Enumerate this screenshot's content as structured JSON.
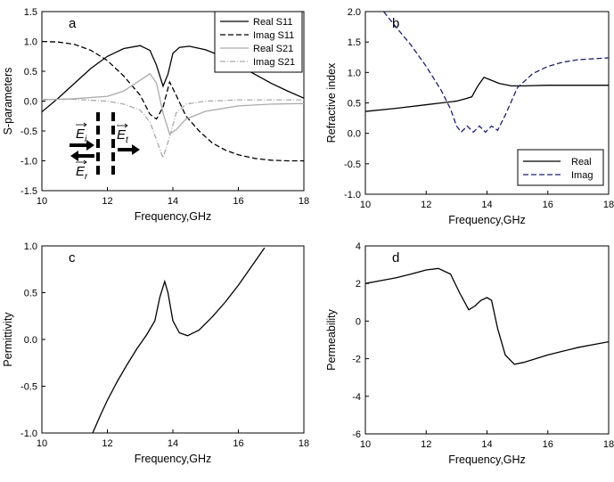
{
  "chart_data": [
    {
      "id": "a",
      "panel_label": "a",
      "type": "line",
      "xlabel": "Frequency,GHz",
      "ylabel": "S-parameters",
      "xlim": [
        10,
        18
      ],
      "ylim": [
        -1.5,
        1.5
      ],
      "xticks": [
        "10",
        "12",
        "14",
        "16",
        "18"
      ],
      "yticks": [
        "-1.5",
        "-1.0",
        "-0.5",
        "0.0",
        "0.5",
        "1.0",
        "1.5"
      ],
      "legend_position": "top-right",
      "series": [
        {
          "name": "Real S11",
          "style": "solid",
          "color": "#000000",
          "x": [
            10,
            10.5,
            11,
            11.5,
            12,
            12.5,
            13,
            13.3,
            13.5,
            13.7,
            13.85,
            14,
            14.2,
            14.5,
            15,
            15.5,
            16,
            16.5,
            17,
            17.5,
            18
          ],
          "y": [
            -0.18,
            0.05,
            0.3,
            0.55,
            0.75,
            0.88,
            0.93,
            0.85,
            0.6,
            0.25,
            0.45,
            0.8,
            0.9,
            0.92,
            0.86,
            0.75,
            0.6,
            0.45,
            0.3,
            0.17,
            0.05
          ]
        },
        {
          "name": "Imag S11",
          "style": "dashed",
          "color": "#000000",
          "x": [
            10,
            10.5,
            11,
            11.5,
            12,
            12.5,
            13,
            13.3,
            13.5,
            13.7,
            13.9,
            14.1,
            14.4,
            14.8,
            15.2,
            15.6,
            16,
            16.5,
            17,
            17.5,
            18
          ],
          "y": [
            1.0,
            0.99,
            0.95,
            0.85,
            0.68,
            0.42,
            0.1,
            -0.22,
            -0.3,
            -0.1,
            0.32,
            0.1,
            -0.25,
            -0.5,
            -0.7,
            -0.82,
            -0.9,
            -0.96,
            -0.99,
            -1.0,
            -1.0
          ]
        },
        {
          "name": "Real S21",
          "style": "solid",
          "color": "#aaaaaa",
          "x": [
            10,
            11,
            12,
            12.5,
            13,
            13.3,
            13.5,
            13.7,
            13.9,
            14.1,
            14.4,
            15,
            16,
            17,
            18
          ],
          "y": [
            0.02,
            0.04,
            0.08,
            0.17,
            0.35,
            0.46,
            0.3,
            -0.2,
            -0.55,
            -0.48,
            -0.3,
            -0.17,
            -0.08,
            -0.05,
            -0.04
          ]
        },
        {
          "name": "Imag S21",
          "style": "dashdot",
          "color": "#aaaaaa",
          "x": [
            10,
            11,
            12,
            12.5,
            13,
            13.3,
            13.5,
            13.7,
            13.9,
            14.1,
            14.4,
            15,
            16,
            17,
            18
          ],
          "y": [
            0.03,
            0.03,
            0.0,
            -0.05,
            -0.15,
            -0.35,
            -0.65,
            -0.95,
            -0.6,
            -0.2,
            -0.05,
            0.0,
            0.02,
            0.02,
            0.02
          ]
        }
      ],
      "inset_labels": [
        "E",
        "i",
        "E",
        "t",
        "E",
        "r"
      ]
    },
    {
      "id": "b",
      "panel_label": "b",
      "type": "line",
      "xlabel": "Frequency,GHz",
      "ylabel": "Refractive index",
      "xlim": [
        10,
        18
      ],
      "ylim": [
        -1.0,
        2.0
      ],
      "xticks": [
        "10",
        "12",
        "14",
        "16",
        "18"
      ],
      "yticks": [
        "-1.0",
        "-0.5",
        "0.0",
        "0.5",
        "1.0",
        "1.5",
        "2.0"
      ],
      "legend_position": "bottom-right",
      "series": [
        {
          "name": "Real",
          "style": "solid",
          "color": "#000000",
          "x": [
            10,
            11,
            12,
            12.5,
            13,
            13.3,
            13.5,
            13.7,
            13.9,
            14.1,
            14.4,
            14.8,
            15.2,
            16,
            17,
            18
          ],
          "y": [
            0.36,
            0.41,
            0.47,
            0.5,
            0.53,
            0.57,
            0.6,
            0.78,
            0.92,
            0.88,
            0.82,
            0.78,
            0.78,
            0.79,
            0.79,
            0.79
          ]
        },
        {
          "name": "Imag",
          "style": "dashed",
          "color": "#1f1f6f",
          "x": [
            10.6,
            11,
            11.5,
            12,
            12.5,
            12.8,
            13.0,
            13.15,
            13.35,
            13.55,
            13.75,
            13.95,
            14.15,
            14.35,
            14.6,
            15,
            15.5,
            16,
            16.5,
            17,
            18
          ],
          "y": [
            2.0,
            1.75,
            1.45,
            1.1,
            0.7,
            0.4,
            0.12,
            0.02,
            0.12,
            0.02,
            0.12,
            0.02,
            0.12,
            0.05,
            0.3,
            0.75,
            0.98,
            1.1,
            1.17,
            1.21,
            1.24
          ]
        }
      ]
    },
    {
      "id": "c",
      "panel_label": "c",
      "type": "line",
      "xlabel": "Frequency,GHz",
      "ylabel": "Permittivity",
      "xlim": [
        10,
        18
      ],
      "ylim": [
        -1.0,
        1.0
      ],
      "xticks": [
        "10",
        "12",
        "14",
        "16",
        "18"
      ],
      "yticks": [
        "-1.0",
        "-0.5",
        "0.0",
        "0.5",
        "1.0"
      ],
      "series": [
        {
          "name": "",
          "style": "solid",
          "color": "#000000",
          "x": [
            11.55,
            11.8,
            12.0,
            12.3,
            12.6,
            12.9,
            13.2,
            13.45,
            13.6,
            13.75,
            13.85,
            14.0,
            14.2,
            14.45,
            14.8,
            15.2,
            15.6,
            16.0,
            16.4,
            16.8
          ],
          "y": [
            -1.0,
            -0.8,
            -0.65,
            -0.45,
            -0.27,
            -0.1,
            0.05,
            0.2,
            0.45,
            0.62,
            0.5,
            0.2,
            0.07,
            0.04,
            0.1,
            0.24,
            0.4,
            0.58,
            0.78,
            0.98
          ]
        }
      ]
    },
    {
      "id": "d",
      "panel_label": "d",
      "type": "line",
      "xlabel": "Frequency,GHz",
      "ylabel": "Permeability",
      "xlim": [
        10,
        18
      ],
      "ylim": [
        -6,
        4
      ],
      "xticks": [
        "10",
        "12",
        "14",
        "16",
        "18"
      ],
      "yticks": [
        "-6",
        "-4",
        "-2",
        "0",
        "2",
        "4"
      ],
      "series": [
        {
          "name": "",
          "style": "solid",
          "color": "#000000",
          "x": [
            10,
            10.5,
            11,
            11.5,
            12,
            12.4,
            12.8,
            13.1,
            13.4,
            13.6,
            13.8,
            14.0,
            14.15,
            14.35,
            14.6,
            14.9,
            15.2,
            15.6,
            16,
            16.5,
            17,
            17.5,
            18
          ],
          "y": [
            2.0,
            2.15,
            2.3,
            2.5,
            2.72,
            2.8,
            2.5,
            1.5,
            0.6,
            0.8,
            1.1,
            1.25,
            1.1,
            -0.4,
            -1.8,
            -2.3,
            -2.2,
            -2.0,
            -1.8,
            -1.6,
            -1.4,
            -1.25,
            -1.1
          ]
        }
      ]
    }
  ]
}
